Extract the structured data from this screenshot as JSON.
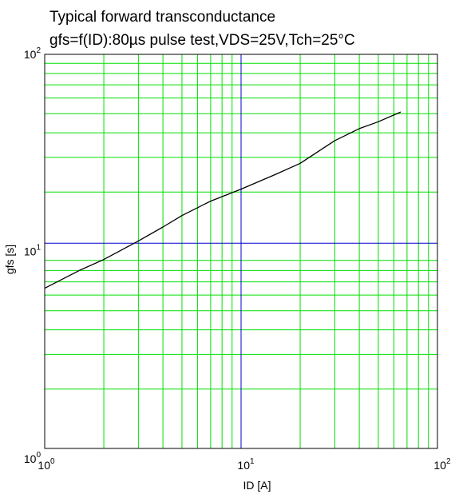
{
  "chart_data": {
    "type": "line",
    "title": "Typical forward transconductance",
    "subtitle": "gfs=f(ID):80µs pulse test,VDS=25V,Tch=25°C",
    "xlabel": "ID [A]",
    "ylabel": "gfs [s]",
    "x_scale": "log",
    "y_scale": "log",
    "xlim": [
      1,
      100
    ],
    "ylim": [
      1,
      100
    ],
    "x_ticks": [
      {
        "base": "10",
        "exp": "0"
      },
      {
        "base": "10",
        "exp": "1"
      },
      {
        "base": "10",
        "exp": "2"
      }
    ],
    "y_ticks": [
      {
        "base": "10",
        "exp": "0"
      },
      {
        "base": "10",
        "exp": "1"
      },
      {
        "base": "10",
        "exp": "2"
      }
    ],
    "grid": true,
    "grid_color": "#00e000",
    "reference_lines": {
      "x": 10,
      "y": 11,
      "color": "#0000cc"
    },
    "series": [
      {
        "color": "#000000",
        "x": [
          1,
          1.5,
          2,
          3,
          4,
          5,
          7,
          10,
          15,
          20,
          30,
          40,
          50,
          65
        ],
        "y": [
          6.5,
          8.0,
          9.1,
          11.3,
          13.3,
          15.2,
          18.0,
          20.7,
          24.6,
          28.0,
          36.5,
          42.0,
          45.5,
          51.0
        ]
      }
    ]
  }
}
